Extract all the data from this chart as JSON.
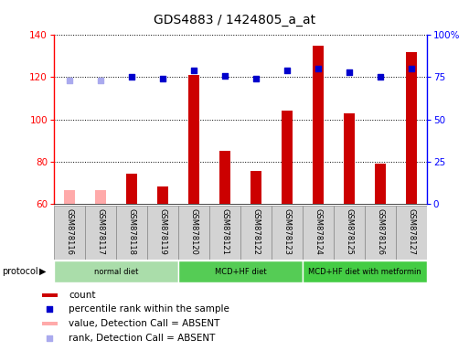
{
  "title": "GDS4883 / 1424805_a_at",
  "samples": [
    "GSM878116",
    "GSM878117",
    "GSM878118",
    "GSM878119",
    "GSM878120",
    "GSM878121",
    "GSM878122",
    "GSM878123",
    "GSM878124",
    "GSM878125",
    "GSM878126",
    "GSM878127"
  ],
  "bar_values": [
    66.5,
    66.5,
    74,
    68,
    121,
    85,
    75.5,
    104,
    135,
    103,
    79,
    132
  ],
  "bar_absent": [
    true,
    true,
    false,
    false,
    false,
    false,
    false,
    false,
    false,
    false,
    false,
    false
  ],
  "percentile_values": [
    73,
    73,
    75,
    74,
    79,
    76,
    74,
    79,
    80,
    78,
    75,
    80
  ],
  "percentile_absent": [
    true,
    true,
    false,
    false,
    false,
    false,
    false,
    false,
    false,
    false,
    false,
    false
  ],
  "ylim_left": [
    60,
    140
  ],
  "ylim_right": [
    0,
    100
  ],
  "yticks_left": [
    60,
    80,
    100,
    120,
    140
  ],
  "yticks_right": [
    0,
    25,
    50,
    75,
    100
  ],
  "ytick_labels_right": [
    "0",
    "25",
    "50",
    "75",
    "100%"
  ],
  "protocols": [
    {
      "label": "normal diet",
      "start": 0,
      "end": 3,
      "color": "#aaddaa"
    },
    {
      "label": "MCD+HF diet",
      "start": 4,
      "end": 7,
      "color": "#55cc55"
    },
    {
      "label": "MCD+HF diet with metformin",
      "start": 8,
      "end": 11,
      "color": "#44cc44"
    }
  ],
  "bar_color_present": "#cc0000",
  "bar_color_absent": "#ffaaaa",
  "dot_color_present": "#0000cc",
  "dot_color_absent": "#aaaaee",
  "protocol_label": "protocol",
  "legend_items": [
    {
      "label": "count",
      "color": "#cc0000",
      "type": "bar"
    },
    {
      "label": "percentile rank within the sample",
      "color": "#0000cc",
      "type": "dot"
    },
    {
      "label": "value, Detection Call = ABSENT",
      "color": "#ffaaaa",
      "type": "bar"
    },
    {
      "label": "rank, Detection Call = ABSENT",
      "color": "#aaaaee",
      "type": "dot"
    }
  ],
  "bar_width": 0.35,
  "title_fontsize": 10,
  "tick_fontsize": 7.5,
  "label_fontsize": 6,
  "background_color": "#ffffff",
  "plot_bg_color": "#ffffff",
  "label_box_color": "#d3d3d3",
  "label_box_border": "#888888"
}
